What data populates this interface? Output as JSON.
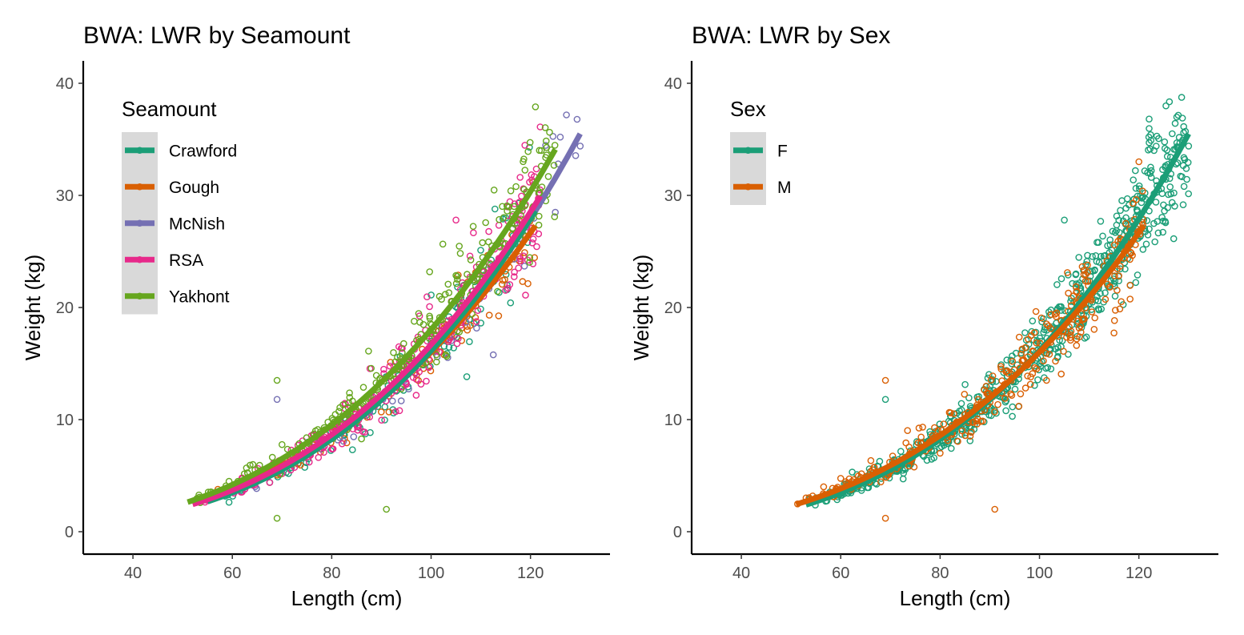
{
  "chart_data": [
    {
      "type": "scatter",
      "title": "BWA: LWR by Seamount",
      "xlabel": "Length (cm)",
      "ylabel": "Weight (kg)",
      "xlim": [
        30,
        136
      ],
      "ylim": [
        -2,
        42
      ],
      "xticks": [
        40,
        60,
        80,
        100,
        120
      ],
      "yticks": [
        0,
        10,
        20,
        30,
        40
      ],
      "grid": false,
      "legend": {
        "title": "Seamount",
        "position": "top-left"
      },
      "series": [
        {
          "name": "Crawford",
          "color": "#1B9E77",
          "fit": {
            "a": 1.6e-05,
            "b": 3.002,
            "x_range": [
              55,
              121
            ]
          }
        },
        {
          "name": "Gough",
          "color": "#D95F02",
          "fit": {
            "a": 4.1e-05,
            "b": 2.796,
            "x_range": [
              53,
              121
            ]
          }
        },
        {
          "name": "McNish",
          "color": "#7570B3",
          "fit": {
            "a": 1.6e-05,
            "b": 3.002,
            "x_range": [
              60,
              130
            ]
          }
        },
        {
          "name": "RSA",
          "color": "#E7298A",
          "fit": {
            "a": 2.2e-05,
            "b": 2.94,
            "x_range": [
              52,
              122
            ]
          }
        },
        {
          "name": "Yakhont",
          "color": "#66A61E",
          "fit": {
            "a": 3.5e-05,
            "b": 2.856,
            "x_range": [
              51,
              125
            ]
          }
        }
      ],
      "notable_points": [
        {
          "series": "Yakhont",
          "x": 121,
          "y": 37.9
        },
        {
          "series": "McNish",
          "x": 126,
          "y": 35.2
        },
        {
          "series": "McNish",
          "x": 130,
          "y": 34.4
        },
        {
          "series": "Yakhont",
          "x": 69,
          "y": 13.5
        },
        {
          "series": "McNish",
          "x": 69,
          "y": 11.8
        },
        {
          "series": "Yakhont",
          "x": 69,
          "y": 1.2
        },
        {
          "series": "Yakhont",
          "x": 91,
          "y": 2.0
        },
        {
          "series": "RSA",
          "x": 105,
          "y": 27.8
        },
        {
          "series": "RSA",
          "x": 119,
          "y": 21.1
        }
      ]
    },
    {
      "type": "scatter",
      "title": "BWA: LWR by Sex",
      "xlabel": "Length (cm)",
      "ylabel": "Weight (kg)",
      "xlim": [
        30,
        136
      ],
      "ylim": [
        -2,
        42
      ],
      "xticks": [
        40,
        60,
        80,
        100,
        120
      ],
      "yticks": [
        0,
        10,
        20,
        30,
        40
      ],
      "grid": false,
      "legend": {
        "title": "Sex",
        "position": "top-left"
      },
      "series": [
        {
          "name": "F",
          "color": "#1B9E77",
          "fit": {
            "a": 1.6e-05,
            "b": 3.002,
            "x_range": [
              53,
              130
            ]
          }
        },
        {
          "name": "M",
          "color": "#D95F02",
          "fit": {
            "a": 4.1e-05,
            "b": 2.796,
            "x_range": [
              51,
              121
            ]
          }
        }
      ],
      "notable_points": [
        {
          "series": "F",
          "x": 122,
          "y": 35.2
        },
        {
          "series": "F",
          "x": 130,
          "y": 34.4
        },
        {
          "series": "M",
          "x": 120,
          "y": 33.0
        },
        {
          "series": "M",
          "x": 69,
          "y": 13.5
        },
        {
          "series": "F",
          "x": 69,
          "y": 11.8
        },
        {
          "series": "M",
          "x": 69,
          "y": 1.2
        },
        {
          "series": "M",
          "x": 91,
          "y": 2.0
        },
        {
          "series": "F",
          "x": 105,
          "y": 27.8
        }
      ]
    }
  ]
}
